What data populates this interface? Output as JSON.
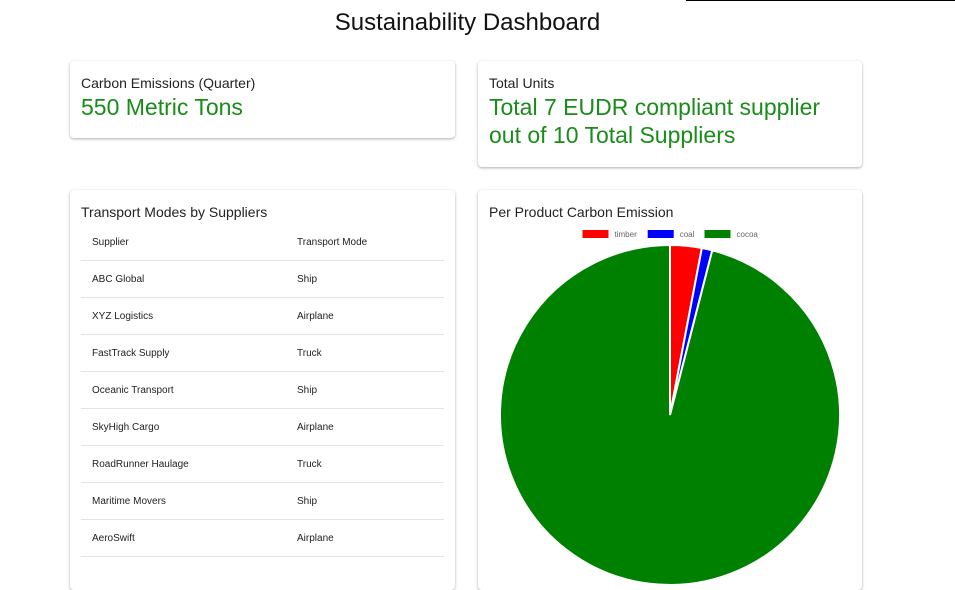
{
  "page": {
    "title": "Sustainability Dashboard"
  },
  "kpis": {
    "carbon_emissions": {
      "label": "Carbon Emissions (Quarter)",
      "value": "550 Metric Tons"
    },
    "total_units": {
      "label": "Total Units",
      "value_line1": "Total 7 EUDR compliant supplier",
      "value_line2": "out of 10 Total Suppliers"
    }
  },
  "transport": {
    "title": "Transport Modes by Suppliers",
    "columns": [
      "Supplier",
      "Transport Mode"
    ],
    "rows": [
      [
        "ABC Global",
        "Ship"
      ],
      [
        "XYZ Logistics",
        "Airplane"
      ],
      [
        "FastTrack Supply",
        "Truck"
      ],
      [
        "Oceanic Transport",
        "Ship"
      ],
      [
        "SkyHigh Cargo",
        "Airplane"
      ],
      [
        "RoadRunner Haulage",
        "Truck"
      ],
      [
        "Maritime Movers",
        "Ship"
      ],
      [
        "AeroSwift",
        "Airplane"
      ]
    ]
  },
  "chart_title": "Per Product Carbon Emission",
  "colors": {
    "accent_green": "#1a8c1a",
    "timber": "#ff0000",
    "coal": "#0000ff",
    "cocoa": "#008000"
  },
  "chart_data": {
    "type": "pie",
    "title": "Per Product Carbon Emission",
    "categories": [
      "timber",
      "coal",
      "cocoa"
    ],
    "values": [
      3,
      1,
      96
    ],
    "colors": [
      "#ff0000",
      "#0000ff",
      "#008000"
    ],
    "legend": "top"
  }
}
